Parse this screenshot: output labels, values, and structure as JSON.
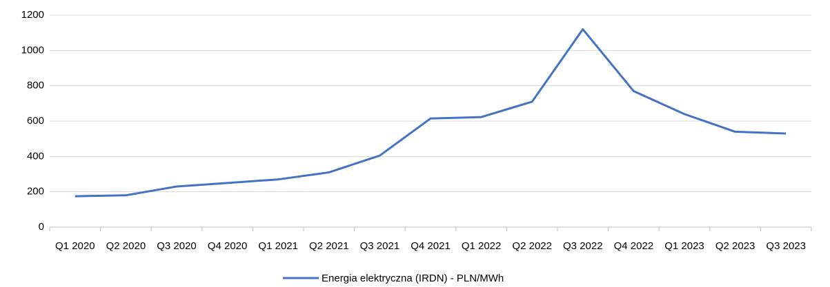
{
  "chart_data": {
    "type": "line",
    "categories": [
      "Q1 2020",
      "Q2 2020",
      "Q3 2020",
      "Q4 2020",
      "Q1 2021",
      "Q2 2021",
      "Q3 2021",
      "Q4 2021",
      "Q1 2022",
      "Q2 2022",
      "Q3 2022",
      "Q4 2022",
      "Q1 2023",
      "Q2 2023",
      "Q3 2023"
    ],
    "series": [
      {
        "name": "Energia elektryczna (IRDN) - PLN/MWh",
        "color": "#4472c4",
        "values": [
          175,
          180,
          230,
          250,
          270,
          310,
          405,
          615,
          623,
          710,
          1120,
          770,
          640,
          540,
          530
        ]
      }
    ],
    "ylim": [
      0,
      1200
    ],
    "yticks": [
      0,
      200,
      400,
      600,
      800,
      1000,
      1200
    ],
    "grid": true,
    "legend": "bottom"
  }
}
